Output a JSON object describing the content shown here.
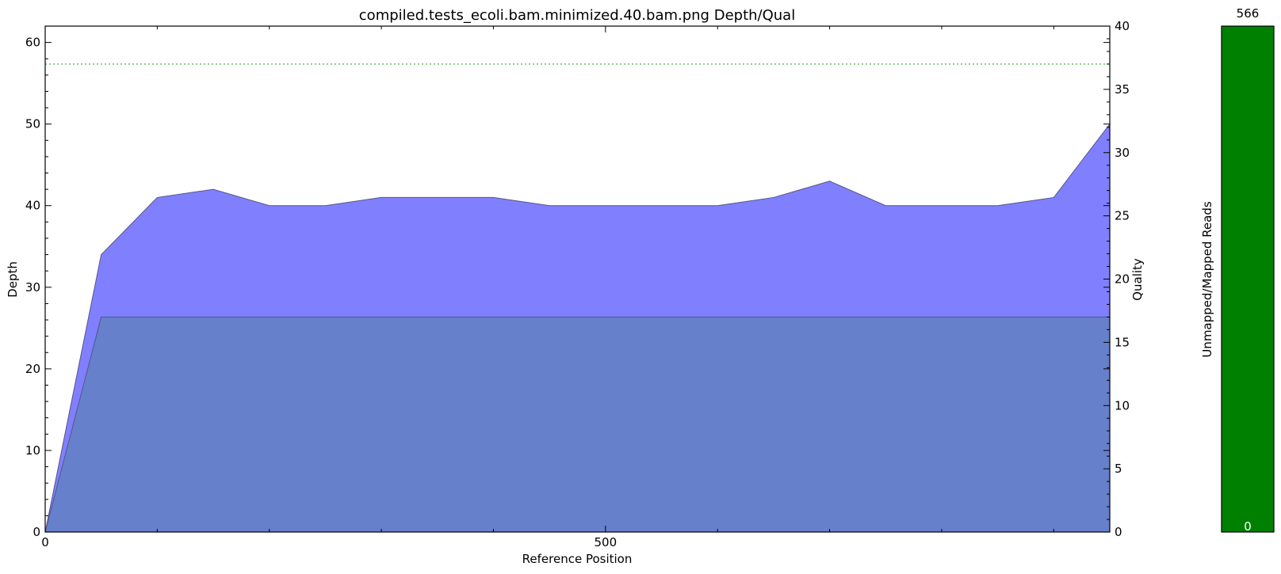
{
  "chart_data": {
    "type": "area",
    "title": "compiled.tests_ecoli.bam.minimized.40.bam.png Depth/Qual",
    "xlabel": "Reference Position",
    "ylabel": "Depth",
    "y2label": "Quality",
    "xlim": [
      0,
      950
    ],
    "ylim": [
      0,
      62
    ],
    "y2lim": [
      0,
      40
    ],
    "xticks": [
      0,
      500
    ],
    "yticks": [
      0,
      10,
      20,
      30,
      40,
      50,
      60
    ],
    "y2ticks": [
      0,
      5,
      10,
      15,
      20,
      25,
      30,
      35,
      40
    ],
    "grid": false,
    "series": [
      {
        "axis": "left",
        "color": "#8080ff",
        "x": [
          0,
          50,
          100,
          150,
          200,
          250,
          300,
          350,
          400,
          450,
          500,
          550,
          600,
          650,
          700,
          750,
          800,
          850,
          900,
          950
        ],
        "values": [
          0,
          34,
          41,
          42,
          40,
          40,
          41,
          41,
          41,
          40,
          40,
          40,
          40,
          41,
          43,
          40,
          40,
          40,
          41,
          50
        ]
      },
      {
        "axis": "right",
        "color": "#6680cc",
        "x": [
          0,
          50,
          950
        ],
        "values": [
          0,
          17,
          17
        ]
      }
    ],
    "reference_line": {
      "axis": "right",
      "value": 37,
      "color": "#3aaa3a",
      "style": "dotted"
    },
    "side_bar": {
      "ylabel": "Unmapped/Mapped Reads",
      "top_label": "566",
      "bottom_label": "0",
      "value": 566,
      "color": "#008000"
    }
  }
}
